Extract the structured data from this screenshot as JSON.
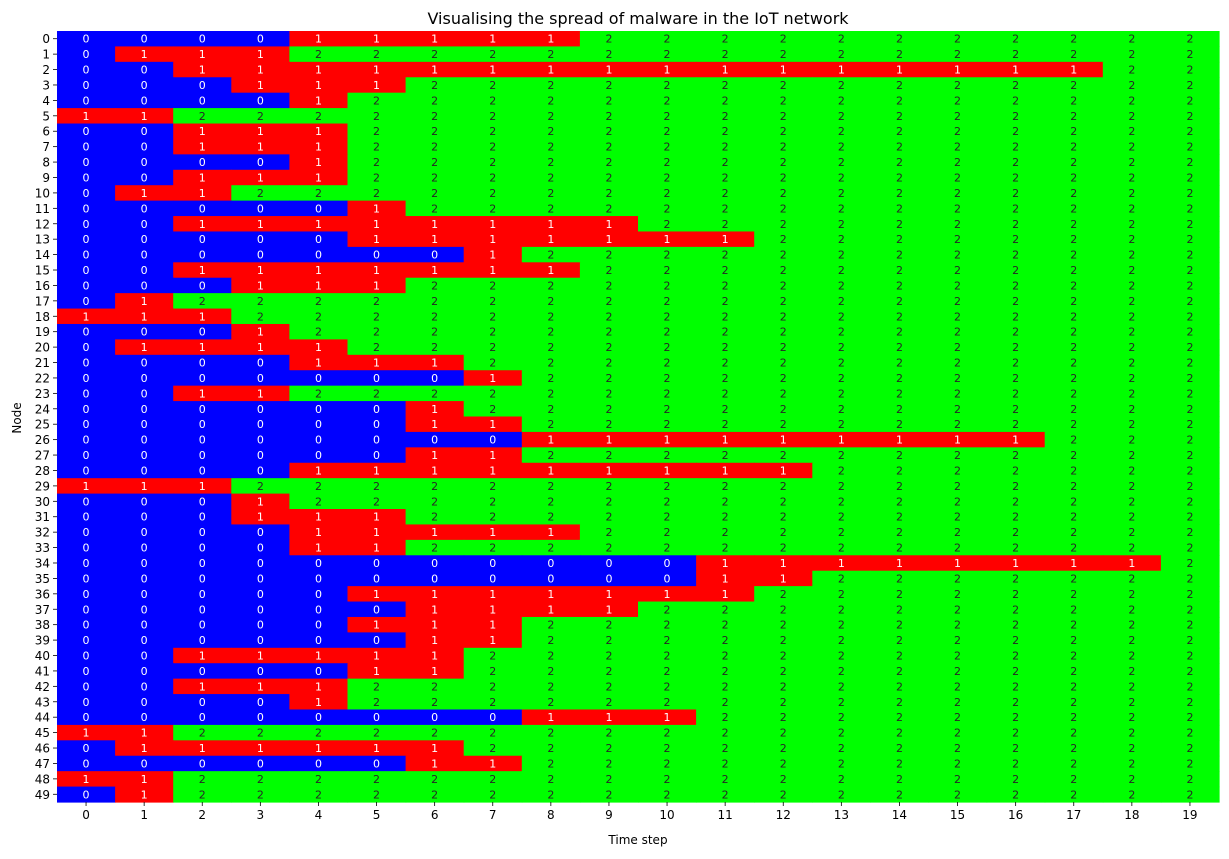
{
  "chart_data": {
    "type": "heatmap",
    "title": "Visualising the spread of malware in the IoT network",
    "xlabel": "Time step",
    "ylabel": "Node",
    "x_categories": [
      "0",
      "1",
      "2",
      "3",
      "4",
      "5",
      "6",
      "7",
      "8",
      "9",
      "10",
      "11",
      "12",
      "13",
      "14",
      "15",
      "16",
      "17",
      "18",
      "19"
    ],
    "y_categories": [
      "0",
      "1",
      "2",
      "3",
      "4",
      "5",
      "6",
      "7",
      "8",
      "9",
      "10",
      "11",
      "12",
      "13",
      "14",
      "15",
      "16",
      "17",
      "18",
      "19",
      "20",
      "21",
      "22",
      "23",
      "24",
      "25",
      "26",
      "27",
      "28",
      "29",
      "30",
      "31",
      "32",
      "33",
      "34",
      "35",
      "36",
      "37",
      "38",
      "39",
      "40",
      "41",
      "42",
      "43",
      "44",
      "45",
      "46",
      "47",
      "48",
      "49"
    ],
    "colors": {
      "0": "#0000ff",
      "1": "#ff0000",
      "2": "#00ff00"
    },
    "annotation_colors": {
      "0": "#ffffff",
      "1": "#ffffff",
      "2": "#262626"
    },
    "colorbar": false,
    "grid": false,
    "rows": [
      [
        0,
        0,
        0,
        0,
        1,
        1,
        1,
        1,
        1,
        2,
        2,
        2,
        2,
        2,
        2,
        2,
        2,
        2,
        2,
        2
      ],
      [
        0,
        1,
        1,
        1,
        2,
        2,
        2,
        2,
        2,
        2,
        2,
        2,
        2,
        2,
        2,
        2,
        2,
        2,
        2,
        2
      ],
      [
        0,
        0,
        1,
        1,
        1,
        1,
        1,
        1,
        1,
        1,
        1,
        1,
        1,
        1,
        1,
        1,
        1,
        1,
        2,
        2
      ],
      [
        0,
        0,
        0,
        1,
        1,
        1,
        2,
        2,
        2,
        2,
        2,
        2,
        2,
        2,
        2,
        2,
        2,
        2,
        2,
        2
      ],
      [
        0,
        0,
        0,
        0,
        1,
        2,
        2,
        2,
        2,
        2,
        2,
        2,
        2,
        2,
        2,
        2,
        2,
        2,
        2,
        2
      ],
      [
        1,
        1,
        2,
        2,
        2,
        2,
        2,
        2,
        2,
        2,
        2,
        2,
        2,
        2,
        2,
        2,
        2,
        2,
        2,
        2
      ],
      [
        0,
        0,
        1,
        1,
        1,
        2,
        2,
        2,
        2,
        2,
        2,
        2,
        2,
        2,
        2,
        2,
        2,
        2,
        2,
        2
      ],
      [
        0,
        0,
        1,
        1,
        1,
        2,
        2,
        2,
        2,
        2,
        2,
        2,
        2,
        2,
        2,
        2,
        2,
        2,
        2,
        2
      ],
      [
        0,
        0,
        0,
        0,
        1,
        2,
        2,
        2,
        2,
        2,
        2,
        2,
        2,
        2,
        2,
        2,
        2,
        2,
        2,
        2
      ],
      [
        0,
        0,
        1,
        1,
        1,
        2,
        2,
        2,
        2,
        2,
        2,
        2,
        2,
        2,
        2,
        2,
        2,
        2,
        2,
        2
      ],
      [
        0,
        1,
        1,
        2,
        2,
        2,
        2,
        2,
        2,
        2,
        2,
        2,
        2,
        2,
        2,
        2,
        2,
        2,
        2,
        2
      ],
      [
        0,
        0,
        0,
        0,
        0,
        1,
        2,
        2,
        2,
        2,
        2,
        2,
        2,
        2,
        2,
        2,
        2,
        2,
        2,
        2
      ],
      [
        0,
        0,
        1,
        1,
        1,
        1,
        1,
        1,
        1,
        1,
        2,
        2,
        2,
        2,
        2,
        2,
        2,
        2,
        2,
        2
      ],
      [
        0,
        0,
        0,
        0,
        0,
        1,
        1,
        1,
        1,
        1,
        1,
        1,
        2,
        2,
        2,
        2,
        2,
        2,
        2,
        2
      ],
      [
        0,
        0,
        0,
        0,
        0,
        0,
        0,
        1,
        2,
        2,
        2,
        2,
        2,
        2,
        2,
        2,
        2,
        2,
        2,
        2
      ],
      [
        0,
        0,
        1,
        1,
        1,
        1,
        1,
        1,
        1,
        2,
        2,
        2,
        2,
        2,
        2,
        2,
        2,
        2,
        2,
        2
      ],
      [
        0,
        0,
        0,
        1,
        1,
        1,
        2,
        2,
        2,
        2,
        2,
        2,
        2,
        2,
        2,
        2,
        2,
        2,
        2,
        2
      ],
      [
        0,
        1,
        2,
        2,
        2,
        2,
        2,
        2,
        2,
        2,
        2,
        2,
        2,
        2,
        2,
        2,
        2,
        2,
        2,
        2
      ],
      [
        1,
        1,
        1,
        2,
        2,
        2,
        2,
        2,
        2,
        2,
        2,
        2,
        2,
        2,
        2,
        2,
        2,
        2,
        2,
        2
      ],
      [
        0,
        0,
        0,
        1,
        2,
        2,
        2,
        2,
        2,
        2,
        2,
        2,
        2,
        2,
        2,
        2,
        2,
        2,
        2,
        2
      ],
      [
        0,
        1,
        1,
        1,
        1,
        2,
        2,
        2,
        2,
        2,
        2,
        2,
        2,
        2,
        2,
        2,
        2,
        2,
        2,
        2
      ],
      [
        0,
        0,
        0,
        0,
        1,
        1,
        1,
        2,
        2,
        2,
        2,
        2,
        2,
        2,
        2,
        2,
        2,
        2,
        2,
        2
      ],
      [
        0,
        0,
        0,
        0,
        0,
        0,
        0,
        1,
        2,
        2,
        2,
        2,
        2,
        2,
        2,
        2,
        2,
        2,
        2,
        2
      ],
      [
        0,
        0,
        1,
        1,
        2,
        2,
        2,
        2,
        2,
        2,
        2,
        2,
        2,
        2,
        2,
        2,
        2,
        2,
        2,
        2
      ],
      [
        0,
        0,
        0,
        0,
        0,
        0,
        1,
        2,
        2,
        2,
        2,
        2,
        2,
        2,
        2,
        2,
        2,
        2,
        2,
        2
      ],
      [
        0,
        0,
        0,
        0,
        0,
        0,
        1,
        1,
        2,
        2,
        2,
        2,
        2,
        2,
        2,
        2,
        2,
        2,
        2,
        2
      ],
      [
        0,
        0,
        0,
        0,
        0,
        0,
        0,
        0,
        1,
        1,
        1,
        1,
        1,
        1,
        1,
        1,
        1,
        2,
        2,
        2
      ],
      [
        0,
        0,
        0,
        0,
        0,
        0,
        1,
        1,
        2,
        2,
        2,
        2,
        2,
        2,
        2,
        2,
        2,
        2,
        2,
        2
      ],
      [
        0,
        0,
        0,
        0,
        1,
        1,
        1,
        1,
        1,
        1,
        1,
        1,
        1,
        2,
        2,
        2,
        2,
        2,
        2,
        2
      ],
      [
        1,
        1,
        1,
        2,
        2,
        2,
        2,
        2,
        2,
        2,
        2,
        2,
        2,
        2,
        2,
        2,
        2,
        2,
        2,
        2
      ],
      [
        0,
        0,
        0,
        1,
        2,
        2,
        2,
        2,
        2,
        2,
        2,
        2,
        2,
        2,
        2,
        2,
        2,
        2,
        2,
        2
      ],
      [
        0,
        0,
        0,
        1,
        1,
        1,
        2,
        2,
        2,
        2,
        2,
        2,
        2,
        2,
        2,
        2,
        2,
        2,
        2,
        2
      ],
      [
        0,
        0,
        0,
        0,
        1,
        1,
        1,
        1,
        1,
        2,
        2,
        2,
        2,
        2,
        2,
        2,
        2,
        2,
        2,
        2
      ],
      [
        0,
        0,
        0,
        0,
        1,
        1,
        2,
        2,
        2,
        2,
        2,
        2,
        2,
        2,
        2,
        2,
        2,
        2,
        2,
        2
      ],
      [
        0,
        0,
        0,
        0,
        0,
        0,
        0,
        0,
        0,
        0,
        0,
        1,
        1,
        1,
        1,
        1,
        1,
        1,
        1,
        2
      ],
      [
        0,
        0,
        0,
        0,
        0,
        0,
        0,
        0,
        0,
        0,
        0,
        1,
        1,
        2,
        2,
        2,
        2,
        2,
        2,
        2
      ],
      [
        0,
        0,
        0,
        0,
        0,
        1,
        1,
        1,
        1,
        1,
        1,
        1,
        2,
        2,
        2,
        2,
        2,
        2,
        2,
        2
      ],
      [
        0,
        0,
        0,
        0,
        0,
        0,
        1,
        1,
        1,
        1,
        2,
        2,
        2,
        2,
        2,
        2,
        2,
        2,
        2,
        2
      ],
      [
        0,
        0,
        0,
        0,
        0,
        1,
        1,
        1,
        2,
        2,
        2,
        2,
        2,
        2,
        2,
        2,
        2,
        2,
        2,
        2
      ],
      [
        0,
        0,
        0,
        0,
        0,
        0,
        1,
        1,
        2,
        2,
        2,
        2,
        2,
        2,
        2,
        2,
        2,
        2,
        2,
        2
      ],
      [
        0,
        0,
        1,
        1,
        1,
        1,
        1,
        2,
        2,
        2,
        2,
        2,
        2,
        2,
        2,
        2,
        2,
        2,
        2,
        2
      ],
      [
        0,
        0,
        0,
        0,
        0,
        1,
        1,
        2,
        2,
        2,
        2,
        2,
        2,
        2,
        2,
        2,
        2,
        2,
        2,
        2
      ],
      [
        0,
        0,
        1,
        1,
        1,
        2,
        2,
        2,
        2,
        2,
        2,
        2,
        2,
        2,
        2,
        2,
        2,
        2,
        2,
        2
      ],
      [
        0,
        0,
        0,
        0,
        1,
        2,
        2,
        2,
        2,
        2,
        2,
        2,
        2,
        2,
        2,
        2,
        2,
        2,
        2,
        2
      ],
      [
        0,
        0,
        0,
        0,
        0,
        0,
        0,
        0,
        1,
        1,
        1,
        2,
        2,
        2,
        2,
        2,
        2,
        2,
        2,
        2
      ],
      [
        1,
        1,
        2,
        2,
        2,
        2,
        2,
        2,
        2,
        2,
        2,
        2,
        2,
        2,
        2,
        2,
        2,
        2,
        2,
        2
      ],
      [
        0,
        1,
        1,
        1,
        1,
        1,
        1,
        2,
        2,
        2,
        2,
        2,
        2,
        2,
        2,
        2,
        2,
        2,
        2,
        2
      ],
      [
        0,
        0,
        0,
        0,
        0,
        0,
        1,
        1,
        2,
        2,
        2,
        2,
        2,
        2,
        2,
        2,
        2,
        2,
        2,
        2
      ],
      [
        1,
        1,
        2,
        2,
        2,
        2,
        2,
        2,
        2,
        2,
        2,
        2,
        2,
        2,
        2,
        2,
        2,
        2,
        2,
        2
      ],
      [
        0,
        1,
        2,
        2,
        2,
        2,
        2,
        2,
        2,
        2,
        2,
        2,
        2,
        2,
        2,
        2,
        2,
        2,
        2,
        2
      ]
    ]
  }
}
